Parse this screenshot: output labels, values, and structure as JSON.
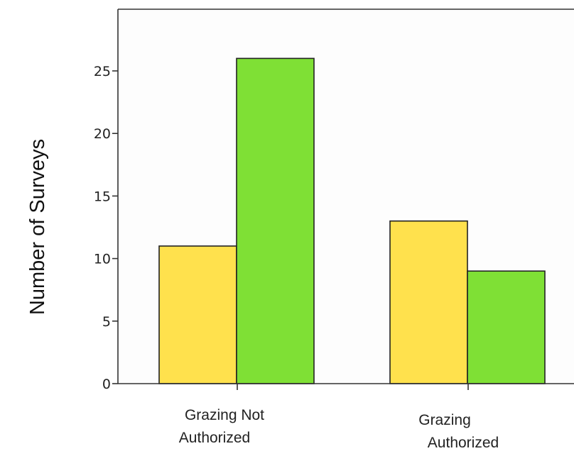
{
  "chart_data": {
    "type": "bar",
    "ylabel": "Number of Surveys",
    "xlabel": "",
    "ylim": [
      0,
      30
    ],
    "yticks": [
      0,
      5,
      10,
      15,
      20,
      25
    ],
    "grid": false,
    "legend": "none",
    "categories": [
      {
        "line1": "Grazing Not",
        "line2": "Authorized"
      },
      {
        "line1": "Grazing",
        "line2": "Authorized"
      }
    ],
    "series": [
      {
        "color": "#FFE14D",
        "values": [
          11,
          13
        ]
      },
      {
        "color": "#7FE035",
        "values": [
          26,
          9
        ]
      }
    ]
  }
}
